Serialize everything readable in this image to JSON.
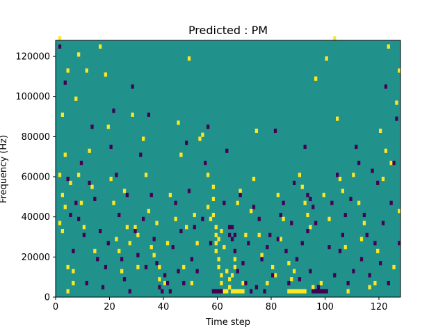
{
  "chart_data": {
    "type": "heatmap",
    "title": "Predicted : PM",
    "xlabel": "Time step",
    "ylabel": "Frequency (Hz)",
    "xlim": [
      0,
      128
    ],
    "ylim": [
      0,
      128000
    ],
    "x_ticks": [
      0,
      20,
      40,
      60,
      80,
      100,
      120
    ],
    "y_ticks": [
      0,
      20000,
      40000,
      60000,
      80000,
      100000,
      120000
    ],
    "x_tick_labels": [
      "0",
      "20",
      "40",
      "60",
      "80",
      "100",
      "120"
    ],
    "y_tick_labels": [
      "0",
      "20000",
      "40000",
      "60000",
      "80000",
      "100000",
      "120000"
    ],
    "grid": false,
    "colors": {
      "background_level": "#21918c",
      "high_level": "#fde725",
      "low_level": "#440154"
    },
    "background_value": 0,
    "high_cells": [
      [
        1,
        128000
      ],
      [
        4,
        112000
      ],
      [
        2,
        90000
      ],
      [
        3,
        70000
      ],
      [
        1,
        60000
      ],
      [
        5,
        56000
      ],
      [
        2,
        50000
      ],
      [
        3,
        44000
      ],
      [
        1,
        36000
      ],
      [
        2,
        32000
      ],
      [
        4,
        14000
      ],
      [
        6,
        12000
      ],
      [
        4,
        2000
      ],
      [
        6,
        6000
      ],
      [
        7,
        98000
      ],
      [
        8,
        120000
      ],
      [
        8,
        60000
      ],
      [
        9,
        46000
      ],
      [
        10,
        34000
      ],
      [
        11,
        112000
      ],
      [
        12,
        72000
      ],
      [
        13,
        54000
      ],
      [
        14,
        22000
      ],
      [
        16,
        124000
      ],
      [
        18,
        110000
      ],
      [
        19,
        84000
      ],
      [
        20,
        58000
      ],
      [
        21,
        46000
      ],
      [
        22,
        28000
      ],
      [
        23,
        22000
      ],
      [
        24,
        12000
      ],
      [
        25,
        52000
      ],
      [
        26,
        34000
      ],
      [
        27,
        26000
      ],
      [
        28,
        90000
      ],
      [
        29,
        34000
      ],
      [
        30,
        14000
      ],
      [
        30,
        30000
      ],
      [
        32,
        78000
      ],
      [
        33,
        60000
      ],
      [
        34,
        42000
      ],
      [
        35,
        24000
      ],
      [
        36,
        20000
      ],
      [
        37,
        36000
      ],
      [
        38,
        14000
      ],
      [
        38,
        8000
      ],
      [
        40,
        6000
      ],
      [
        41,
        26000
      ],
      [
        42,
        50000
      ],
      [
        44,
        38000
      ],
      [
        45,
        86000
      ],
      [
        46,
        70000
      ],
      [
        47,
        14000
      ],
      [
        48,
        34000
      ],
      [
        49,
        118000
      ],
      [
        50,
        6000
      ],
      [
        51,
        40000
      ],
      [
        52,
        26000
      ],
      [
        53,
        78000
      ],
      [
        54,
        80000
      ],
      [
        56,
        60000
      ],
      [
        58,
        48000
      ],
      [
        58,
        40000
      ],
      [
        59,
        34000
      ],
      [
        59,
        30000
      ],
      [
        59,
        26000
      ],
      [
        59,
        22000
      ],
      [
        60,
        18000
      ],
      [
        60,
        14000
      ],
      [
        61,
        10000
      ],
      [
        61,
        6000
      ],
      [
        62,
        2000
      ],
      [
        63,
        2000
      ],
      [
        64,
        4000
      ],
      [
        65,
        10000
      ],
      [
        66,
        14000
      ],
      [
        66,
        18000
      ],
      [
        67,
        46000
      ],
      [
        68,
        52000
      ],
      [
        69,
        6000
      ],
      [
        70,
        30000
      ],
      [
        72,
        42000
      ],
      [
        73,
        58000
      ],
      [
        74,
        82000
      ],
      [
        75,
        30000
      ],
      [
        76,
        20000
      ],
      [
        78,
        6000
      ],
      [
        80,
        14000
      ],
      [
        81,
        10000
      ],
      [
        82,
        50000
      ],
      [
        83,
        28000
      ],
      [
        84,
        38000
      ],
      [
        86,
        16000
      ],
      [
        87,
        8000
      ],
      [
        88,
        12000
      ],
      [
        90,
        60000
      ],
      [
        91,
        54000
      ],
      [
        92,
        46000
      ],
      [
        93,
        40000
      ],
      [
        94,
        34000
      ],
      [
        95,
        4000
      ],
      [
        96,
        108000
      ],
      [
        98,
        6000
      ],
      [
        99,
        50000
      ],
      [
        100,
        118000
      ],
      [
        101,
        38000
      ],
      [
        103,
        128000
      ],
      [
        104,
        88000
      ],
      [
        105,
        58000
      ],
      [
        106,
        52000
      ],
      [
        107,
        24000
      ],
      [
        108,
        2000
      ],
      [
        110,
        60000
      ],
      [
        112,
        46000
      ],
      [
        113,
        28000
      ],
      [
        114,
        36000
      ],
      [
        116,
        4000
      ],
      [
        118,
        6000
      ],
      [
        119,
        22000
      ],
      [
        120,
        82000
      ],
      [
        121,
        58000
      ],
      [
        122,
        72000
      ],
      [
        123,
        124000
      ],
      [
        124,
        66000
      ],
      [
        125,
        14000
      ],
      [
        126,
        96000
      ],
      [
        127,
        42000
      ],
      [
        127,
        112000
      ],
      [
        60,
        28000
      ],
      [
        61,
        32000
      ],
      [
        62,
        24000
      ],
      [
        58,
        54000
      ],
      [
        56,
        44000
      ],
      [
        57,
        38000
      ],
      [
        63,
        12000
      ],
      [
        64,
        8000
      ],
      [
        65,
        2000
      ],
      [
        66,
        2000
      ],
      [
        67,
        2000
      ],
      [
        68,
        2000
      ],
      [
        69,
        2000
      ],
      [
        86,
        2000
      ],
      [
        87,
        2000
      ],
      [
        88,
        2000
      ],
      [
        89,
        2000
      ],
      [
        90,
        2000
      ],
      [
        91,
        2000
      ],
      [
        92,
        2000
      ]
    ],
    "low_cells": [
      [
        1,
        124000
      ],
      [
        3,
        106000
      ],
      [
        4,
        58000
      ],
      [
        5,
        40000
      ],
      [
        6,
        22000
      ],
      [
        7,
        46000
      ],
      [
        8,
        38000
      ],
      [
        9,
        66000
      ],
      [
        10,
        30000
      ],
      [
        11,
        6000
      ],
      [
        12,
        56000
      ],
      [
        13,
        84000
      ],
      [
        14,
        48000
      ],
      [
        15,
        18000
      ],
      [
        16,
        32000
      ],
      [
        17,
        4000
      ],
      [
        18,
        14000
      ],
      [
        19,
        26000
      ],
      [
        20,
        74000
      ],
      [
        21,
        92000
      ],
      [
        22,
        60000
      ],
      [
        23,
        40000
      ],
      [
        24,
        18000
      ],
      [
        25,
        8000
      ],
      [
        26,
        50000
      ],
      [
        27,
        2000
      ],
      [
        28,
        104000
      ],
      [
        29,
        32000
      ],
      [
        30,
        20000
      ],
      [
        31,
        70000
      ],
      [
        32,
        38000
      ],
      [
        33,
        14000
      ],
      [
        34,
        90000
      ],
      [
        35,
        50000
      ],
      [
        36,
        28000
      ],
      [
        37,
        16000
      ],
      [
        38,
        4000
      ],
      [
        39,
        2000
      ],
      [
        40,
        10000
      ],
      [
        41,
        6000
      ],
      [
        42,
        2000
      ],
      [
        43,
        24000
      ],
      [
        44,
        46000
      ],
      [
        45,
        12000
      ],
      [
        46,
        32000
      ],
      [
        47,
        6000
      ],
      [
        48,
        76000
      ],
      [
        49,
        52000
      ],
      [
        50,
        18000
      ],
      [
        51,
        34000
      ],
      [
        52,
        12000
      ],
      [
        54,
        38000
      ],
      [
        55,
        66000
      ],
      [
        56,
        84000
      ],
      [
        57,
        26000
      ],
      [
        58,
        2000
      ],
      [
        59,
        2000
      ],
      [
        60,
        2000
      ],
      [
        61,
        2000
      ],
      [
        62,
        46000
      ],
      [
        63,
        72000
      ],
      [
        64,
        34000
      ],
      [
        65,
        28000
      ],
      [
        66,
        22000
      ],
      [
        67,
        12000
      ],
      [
        68,
        50000
      ],
      [
        69,
        16000
      ],
      [
        70,
        6000
      ],
      [
        71,
        26000
      ],
      [
        72,
        2000
      ],
      [
        73,
        44000
      ],
      [
        74,
        4000
      ],
      [
        75,
        38000
      ],
      [
        76,
        18000
      ],
      [
        77,
        2000
      ],
      [
        78,
        24000
      ],
      [
        79,
        30000
      ],
      [
        80,
        10000
      ],
      [
        81,
        82000
      ],
      [
        82,
        28000
      ],
      [
        83,
        40000
      ],
      [
        84,
        46000
      ],
      [
        85,
        22000
      ],
      [
        86,
        6000
      ],
      [
        87,
        36000
      ],
      [
        88,
        56000
      ],
      [
        89,
        18000
      ],
      [
        90,
        8000
      ],
      [
        91,
        26000
      ],
      [
        92,
        74000
      ],
      [
        93,
        32000
      ],
      [
        94,
        12000
      ],
      [
        95,
        2000
      ],
      [
        96,
        36000
      ],
      [
        97,
        2000
      ],
      [
        98,
        2000
      ],
      [
        99,
        2000
      ],
      [
        100,
        2000
      ],
      [
        101,
        24000
      ],
      [
        102,
        46000
      ],
      [
        103,
        10000
      ],
      [
        104,
        60000
      ],
      [
        105,
        22000
      ],
      [
        106,
        30000
      ],
      [
        107,
        40000
      ],
      [
        108,
        6000
      ],
      [
        109,
        48000
      ],
      [
        110,
        12000
      ],
      [
        111,
        74000
      ],
      [
        112,
        66000
      ],
      [
        113,
        18000
      ],
      [
        114,
        40000
      ],
      [
        115,
        30000
      ],
      [
        116,
        10000
      ],
      [
        117,
        62000
      ],
      [
        118,
        26000
      ],
      [
        119,
        56000
      ],
      [
        120,
        16000
      ],
      [
        121,
        36000
      ],
      [
        122,
        104000
      ],
      [
        123,
        6000
      ],
      [
        124,
        46000
      ],
      [
        125,
        66000
      ],
      [
        126,
        88000
      ],
      [
        127,
        26000
      ],
      [
        66,
        30000
      ],
      [
        65,
        34000
      ],
      [
        64,
        30000
      ],
      [
        97,
        4000
      ],
      [
        96,
        2000
      ],
      [
        95,
        44000
      ],
      [
        94,
        48000
      ],
      [
        93,
        50000
      ]
    ]
  }
}
